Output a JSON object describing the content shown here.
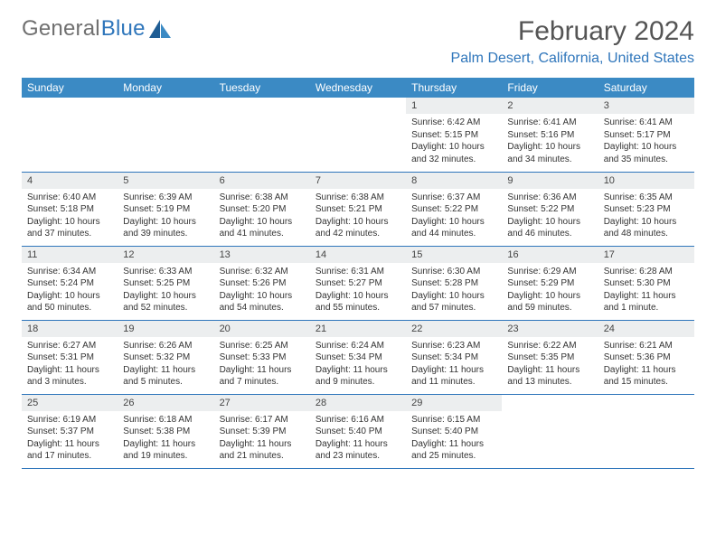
{
  "colors": {
    "header_bg": "#3b8ac4",
    "header_text": "#ffffff",
    "divider": "#2f76bb",
    "daynum_bg": "#eceeef",
    "daynum_text": "#444444",
    "body_text": "#333333",
    "page_bg": "#ffffff",
    "logo_gray": "#707070",
    "logo_blue": "#2f76bb",
    "title_gray": "#555555"
  },
  "logo": {
    "word1": "General",
    "word2": "Blue"
  },
  "title": "February 2024",
  "location": "Palm Desert, California, United States",
  "weekdays": [
    "Sunday",
    "Monday",
    "Tuesday",
    "Wednesday",
    "Thursday",
    "Friday",
    "Saturday"
  ],
  "grid": [
    [
      null,
      null,
      null,
      null,
      {
        "n": "1",
        "sr": "Sunrise: 6:42 AM",
        "ss": "Sunset: 5:15 PM",
        "d1": "Daylight: 10 hours",
        "d2": "and 32 minutes."
      },
      {
        "n": "2",
        "sr": "Sunrise: 6:41 AM",
        "ss": "Sunset: 5:16 PM",
        "d1": "Daylight: 10 hours",
        "d2": "and 34 minutes."
      },
      {
        "n": "3",
        "sr": "Sunrise: 6:41 AM",
        "ss": "Sunset: 5:17 PM",
        "d1": "Daylight: 10 hours",
        "d2": "and 35 minutes."
      }
    ],
    [
      {
        "n": "4",
        "sr": "Sunrise: 6:40 AM",
        "ss": "Sunset: 5:18 PM",
        "d1": "Daylight: 10 hours",
        "d2": "and 37 minutes."
      },
      {
        "n": "5",
        "sr": "Sunrise: 6:39 AM",
        "ss": "Sunset: 5:19 PM",
        "d1": "Daylight: 10 hours",
        "d2": "and 39 minutes."
      },
      {
        "n": "6",
        "sr": "Sunrise: 6:38 AM",
        "ss": "Sunset: 5:20 PM",
        "d1": "Daylight: 10 hours",
        "d2": "and 41 minutes."
      },
      {
        "n": "7",
        "sr": "Sunrise: 6:38 AM",
        "ss": "Sunset: 5:21 PM",
        "d1": "Daylight: 10 hours",
        "d2": "and 42 minutes."
      },
      {
        "n": "8",
        "sr": "Sunrise: 6:37 AM",
        "ss": "Sunset: 5:22 PM",
        "d1": "Daylight: 10 hours",
        "d2": "and 44 minutes."
      },
      {
        "n": "9",
        "sr": "Sunrise: 6:36 AM",
        "ss": "Sunset: 5:22 PM",
        "d1": "Daylight: 10 hours",
        "d2": "and 46 minutes."
      },
      {
        "n": "10",
        "sr": "Sunrise: 6:35 AM",
        "ss": "Sunset: 5:23 PM",
        "d1": "Daylight: 10 hours",
        "d2": "and 48 minutes."
      }
    ],
    [
      {
        "n": "11",
        "sr": "Sunrise: 6:34 AM",
        "ss": "Sunset: 5:24 PM",
        "d1": "Daylight: 10 hours",
        "d2": "and 50 minutes."
      },
      {
        "n": "12",
        "sr": "Sunrise: 6:33 AM",
        "ss": "Sunset: 5:25 PM",
        "d1": "Daylight: 10 hours",
        "d2": "and 52 minutes."
      },
      {
        "n": "13",
        "sr": "Sunrise: 6:32 AM",
        "ss": "Sunset: 5:26 PM",
        "d1": "Daylight: 10 hours",
        "d2": "and 54 minutes."
      },
      {
        "n": "14",
        "sr": "Sunrise: 6:31 AM",
        "ss": "Sunset: 5:27 PM",
        "d1": "Daylight: 10 hours",
        "d2": "and 55 minutes."
      },
      {
        "n": "15",
        "sr": "Sunrise: 6:30 AM",
        "ss": "Sunset: 5:28 PM",
        "d1": "Daylight: 10 hours",
        "d2": "and 57 minutes."
      },
      {
        "n": "16",
        "sr": "Sunrise: 6:29 AM",
        "ss": "Sunset: 5:29 PM",
        "d1": "Daylight: 10 hours",
        "d2": "and 59 minutes."
      },
      {
        "n": "17",
        "sr": "Sunrise: 6:28 AM",
        "ss": "Sunset: 5:30 PM",
        "d1": "Daylight: 11 hours",
        "d2": "and 1 minute."
      }
    ],
    [
      {
        "n": "18",
        "sr": "Sunrise: 6:27 AM",
        "ss": "Sunset: 5:31 PM",
        "d1": "Daylight: 11 hours",
        "d2": "and 3 minutes."
      },
      {
        "n": "19",
        "sr": "Sunrise: 6:26 AM",
        "ss": "Sunset: 5:32 PM",
        "d1": "Daylight: 11 hours",
        "d2": "and 5 minutes."
      },
      {
        "n": "20",
        "sr": "Sunrise: 6:25 AM",
        "ss": "Sunset: 5:33 PM",
        "d1": "Daylight: 11 hours",
        "d2": "and 7 minutes."
      },
      {
        "n": "21",
        "sr": "Sunrise: 6:24 AM",
        "ss": "Sunset: 5:34 PM",
        "d1": "Daylight: 11 hours",
        "d2": "and 9 minutes."
      },
      {
        "n": "22",
        "sr": "Sunrise: 6:23 AM",
        "ss": "Sunset: 5:34 PM",
        "d1": "Daylight: 11 hours",
        "d2": "and 11 minutes."
      },
      {
        "n": "23",
        "sr": "Sunrise: 6:22 AM",
        "ss": "Sunset: 5:35 PM",
        "d1": "Daylight: 11 hours",
        "d2": "and 13 minutes."
      },
      {
        "n": "24",
        "sr": "Sunrise: 6:21 AM",
        "ss": "Sunset: 5:36 PM",
        "d1": "Daylight: 11 hours",
        "d2": "and 15 minutes."
      }
    ],
    [
      {
        "n": "25",
        "sr": "Sunrise: 6:19 AM",
        "ss": "Sunset: 5:37 PM",
        "d1": "Daylight: 11 hours",
        "d2": "and 17 minutes."
      },
      {
        "n": "26",
        "sr": "Sunrise: 6:18 AM",
        "ss": "Sunset: 5:38 PM",
        "d1": "Daylight: 11 hours",
        "d2": "and 19 minutes."
      },
      {
        "n": "27",
        "sr": "Sunrise: 6:17 AM",
        "ss": "Sunset: 5:39 PM",
        "d1": "Daylight: 11 hours",
        "d2": "and 21 minutes."
      },
      {
        "n": "28",
        "sr": "Sunrise: 6:16 AM",
        "ss": "Sunset: 5:40 PM",
        "d1": "Daylight: 11 hours",
        "d2": "and 23 minutes."
      },
      {
        "n": "29",
        "sr": "Sunrise: 6:15 AM",
        "ss": "Sunset: 5:40 PM",
        "d1": "Daylight: 11 hours",
        "d2": "and 25 minutes."
      },
      null,
      null
    ]
  ]
}
